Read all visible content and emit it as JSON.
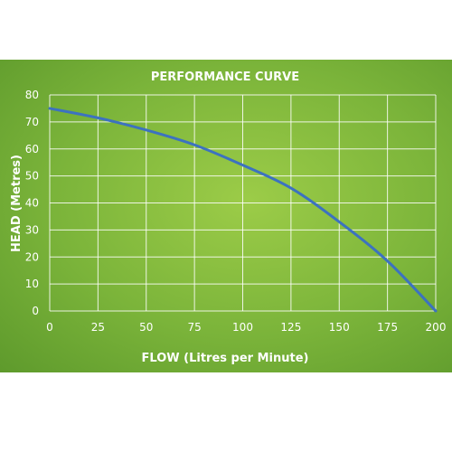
{
  "chart_data": {
    "type": "line",
    "title": "PERFORMANCE CURVE",
    "xlabel": "FLOW (Litres per Minute)",
    "ylabel": "HEAD (Metres)",
    "xlim": [
      0,
      200
    ],
    "ylim": [
      0,
      80
    ],
    "x_ticks": [
      0,
      25,
      50,
      75,
      100,
      125,
      150,
      175,
      200
    ],
    "y_ticks": [
      0,
      10,
      20,
      30,
      40,
      50,
      60,
      70,
      80
    ],
    "grid": true,
    "series": [
      {
        "color": "#3c72c0",
        "x": [
          0,
          25,
          50,
          75,
          100,
          125,
          150,
          175,
          200
        ],
        "y": [
          75,
          71.5,
          67,
          61.5,
          54,
          45.5,
          33,
          18.5,
          0
        ]
      }
    ]
  },
  "colors": {
    "background_gradient": [
      "#9ccc48",
      "#5e9a2c"
    ],
    "grid": "#ffffff",
    "text": "#ffffff"
  }
}
